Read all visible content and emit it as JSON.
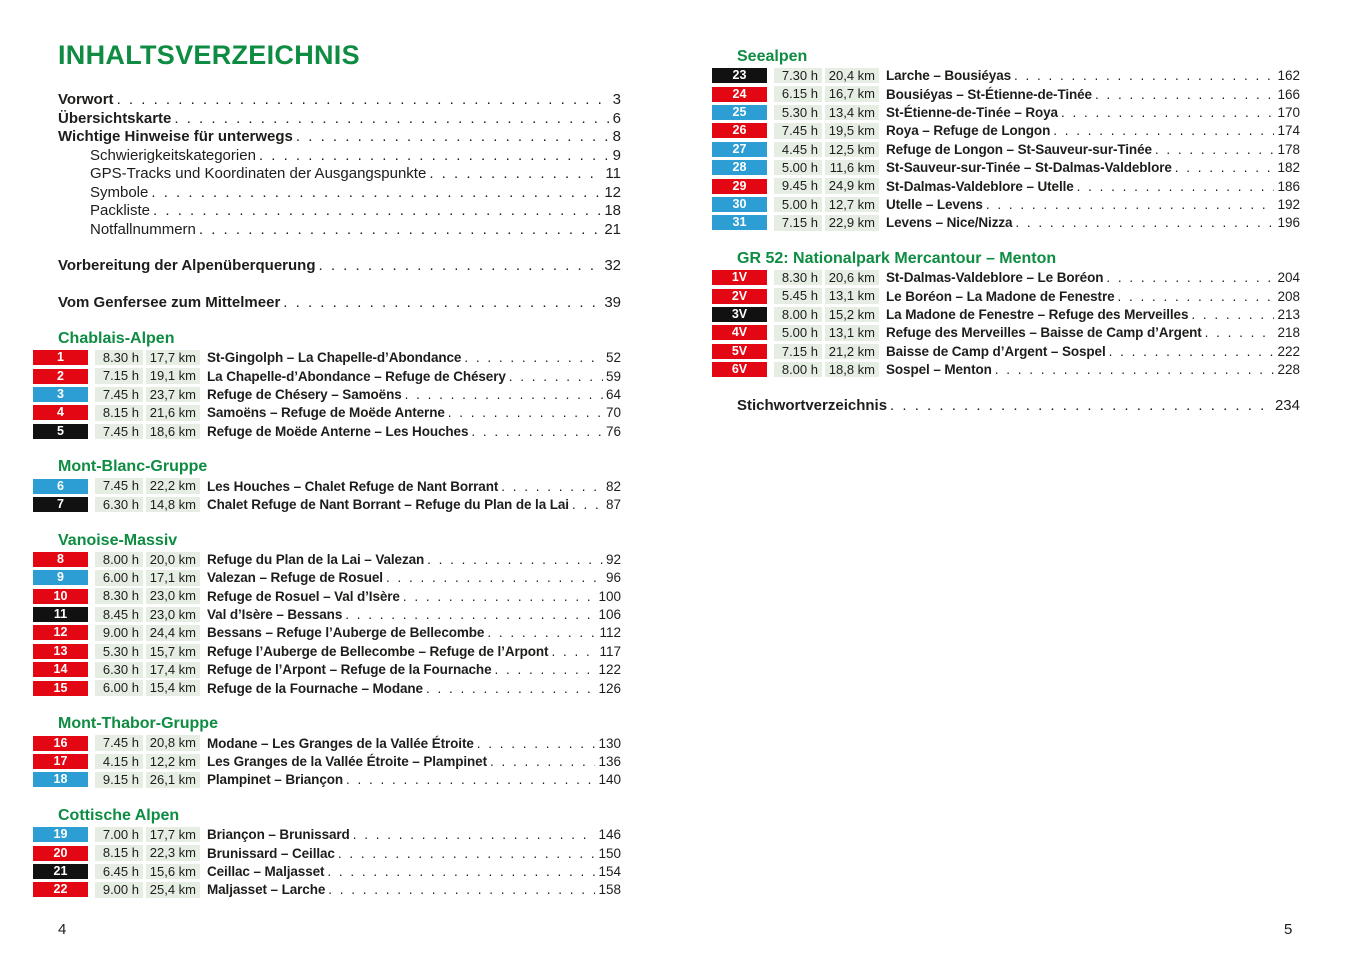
{
  "colors": {
    "heading_green": "#0e8c42",
    "cell_background": "#e6eee3",
    "badge": {
      "red": "#e30613",
      "blue": "#2d9ed3",
      "black": "#111111"
    },
    "badge_text": "#ffffff"
  },
  "left_page": {
    "title": "INHALTSVERZEICHNIS",
    "page_number": "4",
    "toc_items": [
      {
        "label": "Vorwort",
        "page": "3",
        "style": "bold"
      },
      {
        "label": "Übersichtskarte",
        "page": "6",
        "style": "bold"
      },
      {
        "label": "Wichtige Hinweise für unterwegs",
        "page": "8",
        "style": "bold"
      },
      {
        "label": "Schwierigkeitskategorien",
        "page": "9",
        "style": "indent"
      },
      {
        "label": "GPS-Tracks und Koordinaten der Ausgangspunkte",
        "page": "11",
        "style": "indent"
      },
      {
        "label": "Symbole",
        "page": "12",
        "style": "indent"
      },
      {
        "label": "Packliste",
        "page": "18",
        "style": "indent"
      },
      {
        "label": "Notfallnummern",
        "page": "21",
        "style": "indent"
      },
      {
        "label": "Vorbereitung der Alpenüberquerung",
        "page": "32",
        "style": "bold spaced"
      },
      {
        "label": "Vom Genfersee zum Mittelmeer",
        "page": "39",
        "style": "bold spaced"
      }
    ],
    "sections": [
      {
        "heading": "Chablais-Alpen",
        "routes": [
          {
            "num": "1",
            "color": "red",
            "time": "8.30 h",
            "dist": "17,7 km",
            "title": "St-Gingolph – La Chapelle-d’Abondance",
            "page": "52"
          },
          {
            "num": "2",
            "color": "red",
            "time": "7.15 h",
            "dist": "19,1 km",
            "title": "La Chapelle-d’Abondance – Refuge de Chésery",
            "page": "59"
          },
          {
            "num": "3",
            "color": "blue",
            "time": "7.45 h",
            "dist": "23,7 km",
            "title": "Refuge de Chésery – Samoëns",
            "page": "64"
          },
          {
            "num": "4",
            "color": "red",
            "time": "8.15 h",
            "dist": "21,6 km",
            "title": "Samoëns – Refuge de Moëde Anterne",
            "page": "70"
          },
          {
            "num": "5",
            "color": "black",
            "time": "7.45 h",
            "dist": "18,6 km",
            "title": "Refuge de Moëde Anterne – Les Houches",
            "page": "76"
          }
        ]
      },
      {
        "heading": "Mont-Blanc-Gruppe",
        "routes": [
          {
            "num": "6",
            "color": "blue",
            "time": "7.45 h",
            "dist": "22,2 km",
            "title": "Les Houches – Chalet Refuge de Nant Borrant",
            "page": "82"
          },
          {
            "num": "7",
            "color": "black",
            "time": "6.30 h",
            "dist": "14,8 km",
            "title": "Chalet Refuge de Nant Borrant – Refuge du Plan de la Lai",
            "page": "87"
          }
        ]
      },
      {
        "heading": "Vanoise-Massiv",
        "routes": [
          {
            "num": "8",
            "color": "red",
            "time": "8.00 h",
            "dist": "20,0 km",
            "title": "Refuge du Plan de la Lai – Valezan",
            "page": "92"
          },
          {
            "num": "9",
            "color": "blue",
            "time": "6.00 h",
            "dist": "17,1 km",
            "title": "Valezan – Refuge de Rosuel",
            "page": "96"
          },
          {
            "num": "10",
            "color": "red",
            "time": "8.30 h",
            "dist": "23,0 km",
            "title": "Refuge de Rosuel – Val d’Isère",
            "page": "100"
          },
          {
            "num": "11",
            "color": "black",
            "time": "8.45 h",
            "dist": "23,0 km",
            "title": "Val d’Isère – Bessans",
            "page": "106"
          },
          {
            "num": "12",
            "color": "red",
            "time": "9.00 h",
            "dist": "24,4 km",
            "title": "Bessans – Refuge l’Auberge de Bellecombe",
            "page": "112"
          },
          {
            "num": "13",
            "color": "red",
            "time": "5.30 h",
            "dist": "15,7 km",
            "title": "Refuge l’Auberge de Bellecombe – Refuge de l’Arpont",
            "page": "117"
          },
          {
            "num": "14",
            "color": "red",
            "time": "6.30 h",
            "dist": "17,4 km",
            "title": "Refuge de l’Arpont – Refuge de la Fournache",
            "page": "122"
          },
          {
            "num": "15",
            "color": "red",
            "time": "6.00 h",
            "dist": "15,4 km",
            "title": "Refuge de la Fournache – Modane",
            "page": "126"
          }
        ]
      },
      {
        "heading": "Mont-Thabor-Gruppe",
        "routes": [
          {
            "num": "16",
            "color": "red",
            "time": "7.45 h",
            "dist": "20,8 km",
            "title": "Modane – Les Granges de la Vallée Étroite",
            "page": "130"
          },
          {
            "num": "17",
            "color": "red",
            "time": "4.15 h",
            "dist": "12,2 km",
            "title": "Les Granges de la Vallée Étroite – Plampinet",
            "page": "136"
          },
          {
            "num": "18",
            "color": "blue",
            "time": "9.15 h",
            "dist": "26,1 km",
            "title": "Plampinet – Briançon",
            "page": "140"
          }
        ]
      },
      {
        "heading": "Cottische Alpen",
        "routes": [
          {
            "num": "19",
            "color": "blue",
            "time": "7.00 h",
            "dist": "17,7 km",
            "title": "Briançon – Brunissard",
            "page": "146"
          },
          {
            "num": "20",
            "color": "red",
            "time": "8.15 h",
            "dist": "22,3 km",
            "title": "Brunissard – Ceillac",
            "page": "150"
          },
          {
            "num": "21",
            "color": "black",
            "time": "6.45 h",
            "dist": "15,6 km",
            "title": "Ceillac – Maljasset",
            "page": "154"
          },
          {
            "num": "22",
            "color": "red",
            "time": "9.00 h",
            "dist": "25,4 km",
            "title": "Maljasset – Larche",
            "page": "158"
          }
        ]
      }
    ]
  },
  "right_page": {
    "page_number": "5",
    "sections": [
      {
        "heading": "Seealpen",
        "routes": [
          {
            "num": "23",
            "color": "black",
            "time": "7.30 h",
            "dist": "20,4 km",
            "title": "Larche – Bousiéyas",
            "page": "162"
          },
          {
            "num": "24",
            "color": "red",
            "time": "6.15 h",
            "dist": "16,7 km",
            "title": "Bousiéyas – St-Étienne-de-Tinée",
            "page": "166"
          },
          {
            "num": "25",
            "color": "blue",
            "time": "5.30 h",
            "dist": "13,4 km",
            "title": "St-Étienne-de-Tinée – Roya",
            "page": "170"
          },
          {
            "num": "26",
            "color": "red",
            "time": "7.45 h",
            "dist": "19,5 km",
            "title": "Roya – Refuge de Longon",
            "page": "174"
          },
          {
            "num": "27",
            "color": "blue",
            "time": "4.45 h",
            "dist": "12,5 km",
            "title": "Refuge de Longon – St-Sauveur-sur-Tinée",
            "page": "178"
          },
          {
            "num": "28",
            "color": "blue",
            "time": "5.00 h",
            "dist": "11,6 km",
            "title": "St-Sauveur-sur-Tinée – St-Dalmas-Valdeblore",
            "page": "182"
          },
          {
            "num": "29",
            "color": "red",
            "time": "9.45 h",
            "dist": "24,9 km",
            "title": "St-Dalmas-Valdeblore – Utelle",
            "page": "186"
          },
          {
            "num": "30",
            "color": "blue",
            "time": "5.00 h",
            "dist": "12,7 km",
            "title": "Utelle – Levens",
            "page": "192"
          },
          {
            "num": "31",
            "color": "blue",
            "time": "7.15 h",
            "dist": "22,9 km",
            "title": "Levens – Nice/Nizza",
            "page": "196"
          }
        ]
      },
      {
        "heading": "GR 52: Nationalpark Mercantour – Menton",
        "routes": [
          {
            "num": "1V",
            "color": "red",
            "time": "8.30 h",
            "dist": "20,6 km",
            "title": "St-Dalmas-Valdeblore – Le Boréon",
            "page": "204"
          },
          {
            "num": "2V",
            "color": "red",
            "time": "5.45 h",
            "dist": "13,1 km",
            "title": "Le Boréon – La Madone de Fenestre",
            "page": "208"
          },
          {
            "num": "3V",
            "color": "black",
            "time": "8.00 h",
            "dist": "15,2 km",
            "title": "La Madone de Fenestre – Refuge des Merveilles",
            "page": "213"
          },
          {
            "num": "4V",
            "color": "red",
            "time": "5.00 h",
            "dist": "13,1 km",
            "title": "Refuge des Merveilles – Baisse de Camp d’Argent",
            "page": "218"
          },
          {
            "num": "5V",
            "color": "red",
            "time": "7.15 h",
            "dist": "21,2 km",
            "title": "Baisse de Camp d’Argent – Sospel",
            "page": "222"
          },
          {
            "num": "6V",
            "color": "red",
            "time": "8.00 h",
            "dist": "18,8 km",
            "title": "Sospel – Menton",
            "page": "228"
          }
        ]
      }
    ],
    "index_entry": {
      "label": "Stichwortverzeichnis",
      "page": "234"
    }
  }
}
